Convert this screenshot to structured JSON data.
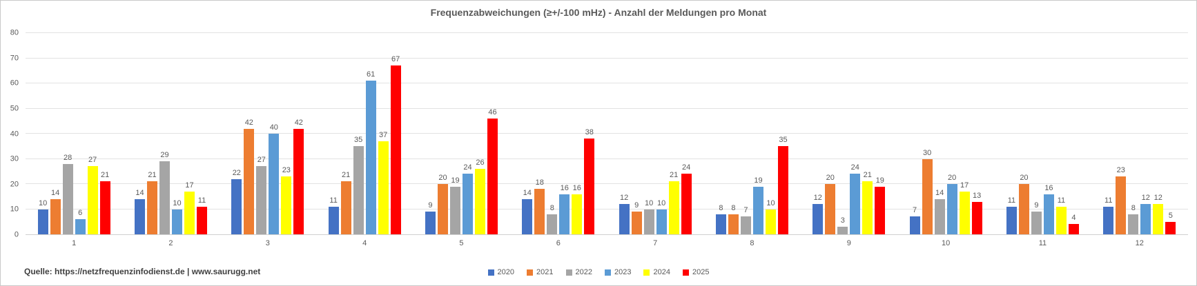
{
  "title": "Frequenzabweichungen (≥+/-100 mHz) - Anzahl der Meldungen pro Monat",
  "footer": "Quelle: https://netzfrequenzinfodienst.de | www.saurugg.net",
  "colors": {
    "title_text": "#595959",
    "axis_text": "#595959",
    "gridline": "#e2e2e2",
    "background": "#ffffff"
  },
  "chart_data": {
    "type": "bar",
    "title": "Frequenzabweichungen (≥+/-100 mHz) - Anzahl der Meldungen pro Monat",
    "xlabel": "",
    "ylabel": "",
    "categories": [
      "1",
      "2",
      "3",
      "4",
      "5",
      "6",
      "7",
      "8",
      "9",
      "10",
      "11",
      "12"
    ],
    "series": [
      {
        "name": "2020",
        "color": "#4472C4",
        "values": [
          10,
          14,
          22,
          11,
          9,
          14,
          12,
          8,
          12,
          7,
          11,
          11
        ]
      },
      {
        "name": "2021",
        "color": "#ED7D31",
        "values": [
          14,
          21,
          42,
          21,
          20,
          18,
          9,
          8,
          20,
          30,
          20,
          23
        ]
      },
      {
        "name": "2022",
        "color": "#A5A5A5",
        "values": [
          28,
          29,
          27,
          35,
          19,
          8,
          10,
          7,
          3,
          14,
          9,
          8
        ]
      },
      {
        "name": "2023",
        "color": "#5B9BD5",
        "values": [
          6,
          10,
          40,
          61,
          24,
          16,
          10,
          19,
          24,
          20,
          16,
          12
        ]
      },
      {
        "name": "2024",
        "color": "#FFFF00",
        "values": [
          27,
          17,
          23,
          37,
          26,
          16,
          21,
          10,
          21,
          17,
          11,
          12
        ]
      },
      {
        "name": "2025",
        "color": "#FF0000",
        "values": [
          21,
          11,
          42,
          67,
          46,
          38,
          24,
          35,
          19,
          13,
          4,
          5
        ]
      }
    ],
    "ylim": [
      0,
      80
    ],
    "ytick_step": 10,
    "grid": true,
    "legend_position": "bottom",
    "data_labels": true
  }
}
